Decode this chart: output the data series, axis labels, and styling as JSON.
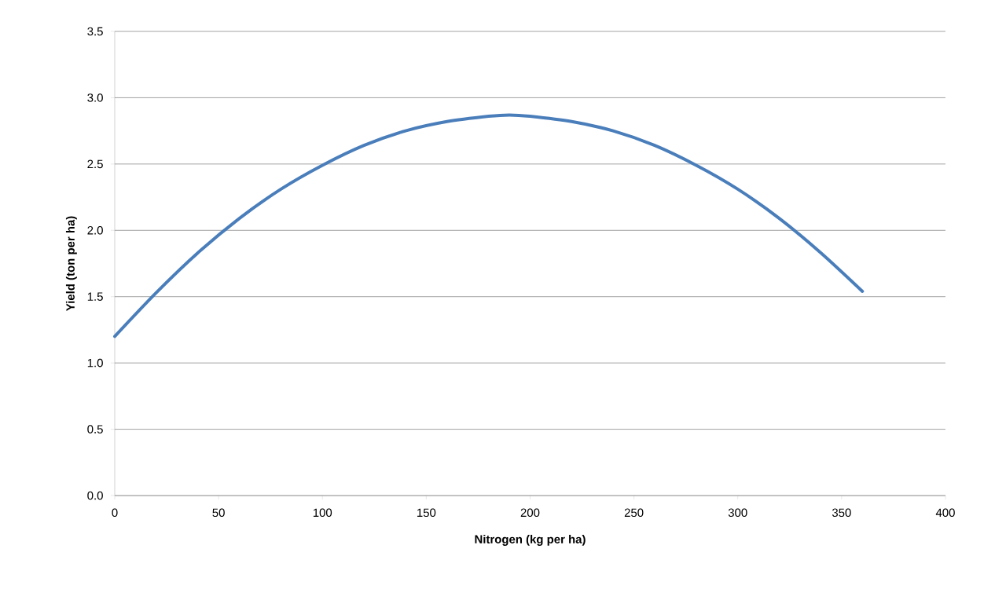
{
  "chart_data": {
    "type": "line",
    "xlabel": "Nitrogen (kg per ha)",
    "ylabel": "Yield (ton per ha)",
    "x": [
      0,
      20,
      40,
      60,
      80,
      100,
      120,
      140,
      160,
      180,
      190,
      200,
      220,
      240,
      260,
      280,
      300,
      320,
      340,
      360
    ],
    "values": [
      1.2,
      1.53,
      1.83,
      2.09,
      2.31,
      2.49,
      2.64,
      2.75,
      2.82,
      2.86,
      2.87,
      2.86,
      2.82,
      2.75,
      2.64,
      2.49,
      2.31,
      2.09,
      1.83,
      1.54
    ],
    "color": "#4a7ebb",
    "xlim": [
      0,
      400
    ],
    "ylim": [
      0,
      3.5
    ],
    "xticks": [
      0,
      50,
      100,
      150,
      200,
      250,
      300,
      350,
      400
    ],
    "yticks": [
      {
        "value": 0,
        "label": "0.0"
      },
      {
        "value": 0.5,
        "label": "0.5"
      },
      {
        "value": 1,
        "label": "1.0"
      },
      {
        "value": 1.5,
        "label": "1.5"
      },
      {
        "value": 2,
        "label": "2.0"
      },
      {
        "value": 2.5,
        "label": "2.5"
      },
      {
        "value": 3,
        "label": "3.0"
      },
      {
        "value": 3.5,
        "label": "3.5"
      }
    ],
    "grid": "y"
  }
}
